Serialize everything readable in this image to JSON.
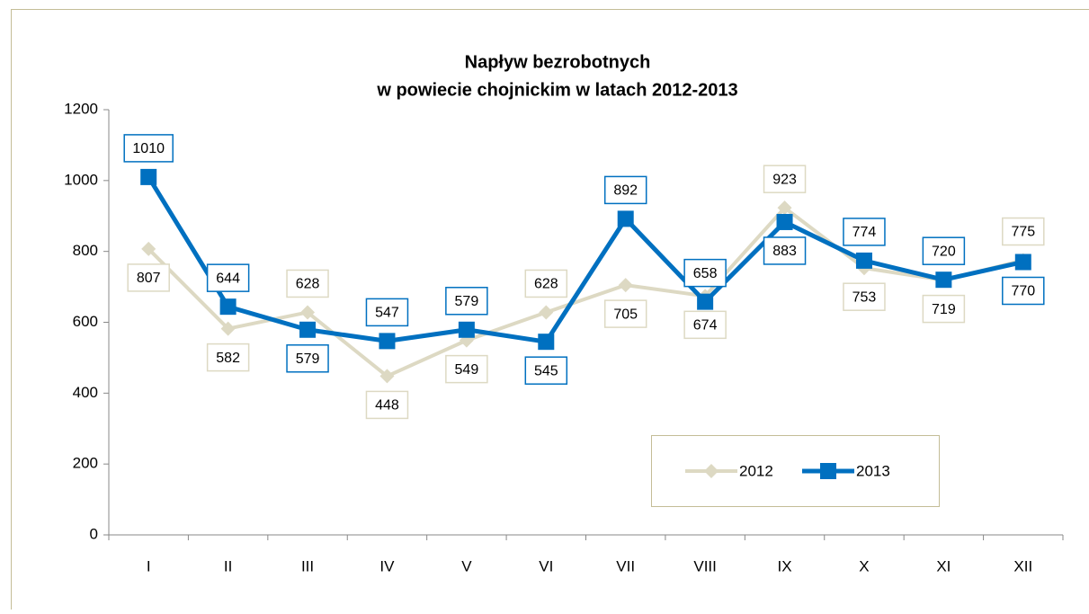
{
  "chart_data": {
    "type": "line",
    "title": [
      "Napływ bezrobotnych",
      "w powiecie chojnickim w latach 2012-2013"
    ],
    "categories": [
      "I",
      "II",
      "III",
      "IV",
      "V",
      "VI",
      "VII",
      "VIII",
      "IX",
      "X",
      "XI",
      "XII"
    ],
    "series": [
      {
        "name": "2012",
        "color": "#ddd9c3",
        "marker": "diamond",
        "values": [
          807,
          582,
          628,
          448,
          549,
          628,
          705,
          674,
          923,
          753,
          719,
          775
        ]
      },
      {
        "name": "2013",
        "color": "#0070c0",
        "marker": "square",
        "values": [
          1010,
          644,
          579,
          547,
          579,
          545,
          892,
          658,
          883,
          774,
          720,
          770
        ]
      }
    ],
    "ylim": [
      0,
      1200
    ],
    "yticks": [
      0,
      200,
      400,
      600,
      800,
      1000,
      1200
    ],
    "grid": false
  }
}
